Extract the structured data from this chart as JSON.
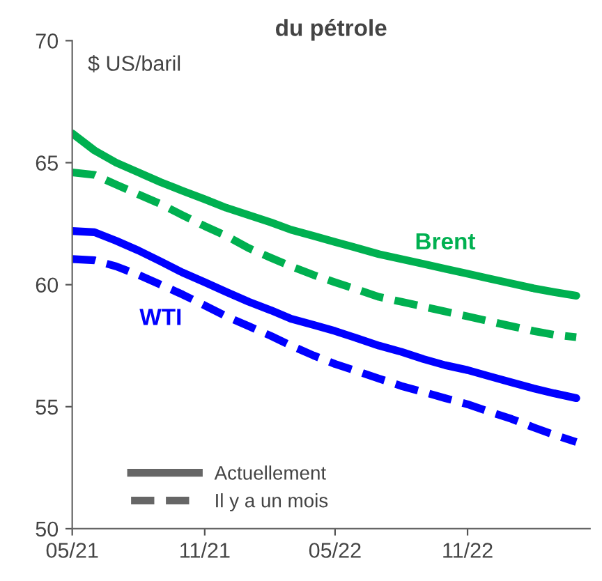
{
  "chart_data": {
    "type": "line",
    "title": "du pétrole",
    "ylabel": "$ US/baril",
    "x": [
      "2021-05",
      "2021-06",
      "2021-07",
      "2021-08",
      "2021-09",
      "2021-10",
      "2021-11",
      "2021-12",
      "2022-01",
      "2022-02",
      "2022-03",
      "2022-04",
      "2022-05",
      "2022-06",
      "2022-07",
      "2022-08",
      "2022-09",
      "2022-10",
      "2022-11",
      "2022-12",
      "2023-01",
      "2023-02",
      "2023-03",
      "2023-04"
    ],
    "series": [
      {
        "name": "Brent",
        "color": "#00b050",
        "line_style": "solid",
        "values": [
          66.2,
          65.5,
          65.0,
          64.6,
          64.2,
          63.85,
          63.5,
          63.15,
          62.85,
          62.55,
          62.25,
          62.0,
          61.75,
          61.5,
          61.25,
          61.05,
          60.85,
          60.65,
          60.45,
          60.25,
          60.05,
          59.85,
          59.7,
          59.55
        ]
      },
      {
        "color": "#00b050",
        "line_style": "dashed",
        "values": [
          64.6,
          64.5,
          64.1,
          63.7,
          63.3,
          62.85,
          62.4,
          62.0,
          61.5,
          61.1,
          60.75,
          60.4,
          60.1,
          59.8,
          59.5,
          59.3,
          59.1,
          58.9,
          58.7,
          58.5,
          58.3,
          58.1,
          57.95,
          57.85
        ]
      },
      {
        "name": "WTI",
        "color": "#0000ff",
        "line_style": "solid",
        "values": [
          62.2,
          62.15,
          61.8,
          61.4,
          60.95,
          60.5,
          60.1,
          59.7,
          59.3,
          58.95,
          58.6,
          58.35,
          58.1,
          57.8,
          57.5,
          57.25,
          56.95,
          56.7,
          56.5,
          56.25,
          56.0,
          55.75,
          55.55,
          55.35
        ]
      },
      {
        "color": "#0000ff",
        "line_style": "dashed",
        "values": [
          61.05,
          61.0,
          60.75,
          60.4,
          60.0,
          59.6,
          59.15,
          58.7,
          58.3,
          57.9,
          57.5,
          57.1,
          56.75,
          56.45,
          56.15,
          55.85,
          55.6,
          55.35,
          55.1,
          54.8,
          54.5,
          54.15,
          53.85,
          53.55
        ]
      }
    ],
    "annotations": [
      "Actuellement",
      "Il y a un mois"
    ],
    "xlim": [
      "2021-05",
      "2023-04-20"
    ],
    "xticks": [
      {
        "value": "2021-05",
        "label": "05/21"
      },
      {
        "value": "2021-11",
        "label": "11/21"
      },
      {
        "value": "2022-05",
        "label": "05/22"
      },
      {
        "value": "2022-11",
        "label": "11/22"
      }
    ],
    "ylim": [
      50,
      70
    ],
    "yticks": [
      50,
      55,
      60,
      65,
      70
    ],
    "grid": false
  }
}
